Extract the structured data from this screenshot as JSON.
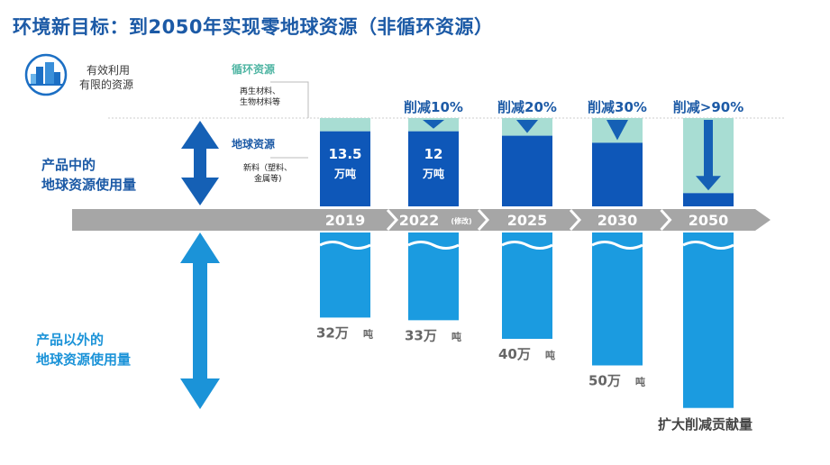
{
  "title": "环境新目标：到2050年实现零地球资源（非循环资源）",
  "badge": {
    "line1": "有效利用",
    "line2": "有限的资源",
    "icon": "building-circle-icon"
  },
  "legend": {
    "recycled": {
      "label": "循环资源",
      "sub1": "再生材料、",
      "sub2": "生物材料等"
    },
    "earth": {
      "label": "地球资源",
      "sub1": "新料（塑料、",
      "sub2": "金属等)"
    }
  },
  "sections": {
    "in_product": {
      "line1": "产品中的",
      "line2": "地球资源使用量"
    },
    "outside_product": {
      "line1": "产品以外的",
      "line2": "地球资源使用量"
    }
  },
  "bottom_note": "扩大削减贡献量",
  "colors": {
    "title": "#1c5aa6",
    "earth": "#0e57b8",
    "recycled": "#a8ddd3",
    "outside": "#1b9be0",
    "timeline": "#a6a6a6",
    "arrow_top": "#1560b5",
    "arrow_bottom": "#1b93d8"
  },
  "chart_data": {
    "type": "bar",
    "categories": [
      "2019",
      "2022",
      "2025",
      "2030",
      "2050"
    ],
    "category_notes": [
      "",
      "(修改)",
      "",
      "",
      ""
    ],
    "in_product": {
      "total_share": [
        1.0,
        1.0,
        1.0,
        1.0,
        1.0
      ],
      "earth_share": [
        0.85,
        0.85,
        0.8,
        0.72,
        0.15
      ],
      "reduction_labels": [
        "",
        "削减10%",
        "削减20%",
        "削减30%",
        "削减>90%"
      ],
      "value_labels": [
        {
          "value": "13.5",
          "unit": "万吨"
        },
        {
          "value": "12",
          "unit": "万吨"
        },
        {
          "value": "",
          "unit": ""
        },
        {
          "value": "",
          "unit": ""
        },
        {
          "value": "",
          "unit": ""
        }
      ]
    },
    "outside_product": {
      "series_name": "",
      "values": [
        32,
        33,
        40,
        50,
        66
      ],
      "labels": [
        {
          "value": "32万",
          "unit": "吨"
        },
        {
          "value": "33万",
          "unit": "吨"
        },
        {
          "value": "40万",
          "unit": "吨"
        },
        {
          "value": "50万",
          "unit": "吨"
        },
        {
          "value": "",
          "unit": ""
        }
      ]
    }
  }
}
